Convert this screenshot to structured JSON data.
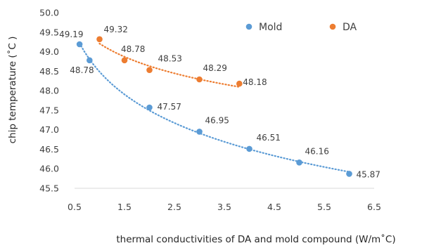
{
  "chart_data": {
    "type": "scatter",
    "xlabel": "thermal conductivities of DA and mold compound (W/m˚C)",
    "ylabel": "chip temperature (˚C )",
    "xlim": [
      0.5,
      6.5
    ],
    "ylim": [
      45.5,
      50.0
    ],
    "x_ticks": [
      "0.5",
      "1.5",
      "2.5",
      "3.5",
      "4.5",
      "5.5",
      "6.5"
    ],
    "y_ticks": [
      "45.5",
      "46.0",
      "46.5",
      "47.0",
      "47.5",
      "48.0",
      "48.5",
      "49.0",
      "49.5",
      "50.0"
    ],
    "grid": false,
    "legend_position": "top-right",
    "trendline": "dotted",
    "series": [
      {
        "name": "Mold",
        "color": "#5b9bd5",
        "x": [
          0.6,
          0.8,
          2.0,
          3.0,
          4.0,
          5.0,
          6.0
        ],
        "y": [
          49.19,
          48.78,
          47.57,
          46.95,
          46.51,
          46.16,
          45.87
        ],
        "labels": [
          "49.19",
          "48.78",
          "47.57",
          "46.95",
          "46.51",
          "46.16",
          "45.87"
        ]
      },
      {
        "name": "DA",
        "color": "#ed7d31",
        "x": [
          1.0,
          1.5,
          2.0,
          3.0,
          3.8
        ],
        "y": [
          49.32,
          48.78,
          48.53,
          48.29,
          48.18
        ],
        "labels": [
          "49.32",
          "48.78",
          "48.53",
          "48.29",
          "48.18"
        ]
      }
    ]
  }
}
